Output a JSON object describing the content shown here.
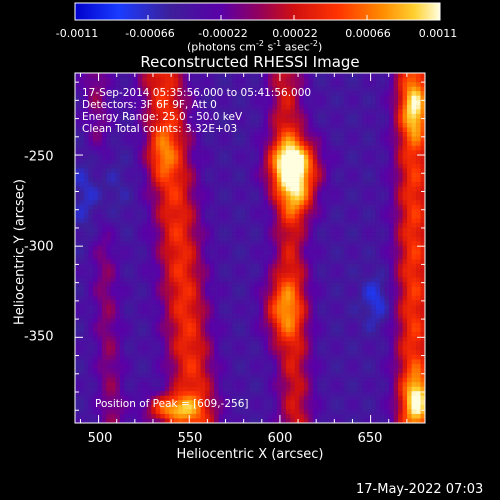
{
  "chart_data": {
    "type": "heatmap",
    "title": "Reconstructed RHESSI Image",
    "xlabel": "Heliocentric X (arcsec)",
    "ylabel": "Heliocentric Y (arcsec)",
    "xlim": [
      487,
      680
    ],
    "ylim": [
      -397,
      -205
    ],
    "x_ticks": [
      500,
      550,
      600,
      650
    ],
    "y_ticks": [
      -250,
      -300,
      -350
    ],
    "colorbar": {
      "ticks": [
        "-0.0011",
        "-0.00066",
        "-0.00022",
        "0.00022",
        "0.00066",
        "0.0011"
      ],
      "range": [
        -0.0011,
        0.0011
      ],
      "units_prefix": "(photons cm",
      "units_sup1": "-2",
      "units_mid1": " s",
      "units_sup2": "-1",
      "units_mid2": " asec",
      "units_sup3": "-2",
      "units_suffix": ")"
    },
    "info_lines": [
      "17-Sep-2014 05:35:56.000 to 05:41:56.000",
      "Detectors: 3F 6F 9F, Att 0",
      "Energy Range: 25.0 - 50.0 keV",
      "Clean     Total counts: 3.32E+03"
    ],
    "peak_text": "Position of Peak = [609,-256]",
    "peak": {
      "x": 609,
      "y": -256
    },
    "footer_timestamp": "17-May-2022 07:03",
    "colors": {
      "background": "#000000",
      "text": "#ffffff"
    }
  }
}
